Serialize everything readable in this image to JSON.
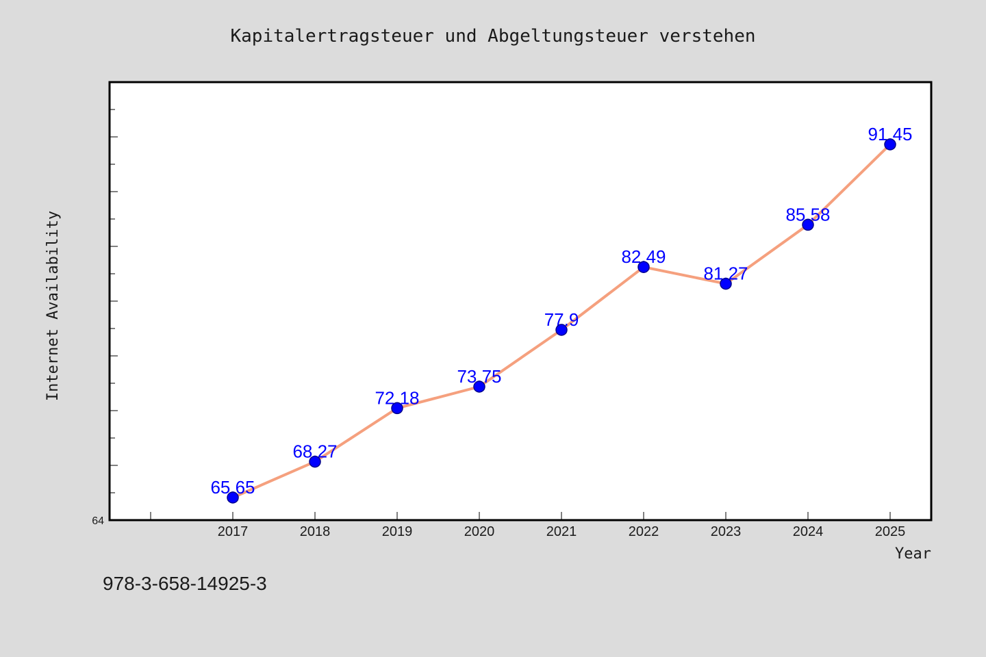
{
  "page": {
    "background": "#dcdcdc",
    "plot_background": "#ffffff",
    "axis_color": "#000000"
  },
  "isbn": "978-3-658-14925-3",
  "chart_data": {
    "type": "line",
    "title": "Kapitalertragsteuer und Abgeltungsteuer verstehen",
    "xlabel": "Year",
    "ylabel": "Internet Availability",
    "x": [
      2017,
      2018,
      2019,
      2020,
      2021,
      2022,
      2023,
      2024,
      2025
    ],
    "series": [
      {
        "values": [
          65.65,
          68.27,
          72.18,
          73.75,
          77.9,
          82.49,
          81.27,
          85.58,
          91.45
        ],
        "line_color": "#f5a07e",
        "marker_color": "#0000ff",
        "marker_edge_color": "#00008b",
        "label_color": "#0000ff"
      }
    ],
    "xlim": [
      2015.5,
      2025.5
    ],
    "ylim": [
      64,
      96
    ],
    "x_tick_step": 1,
    "y_tick_step": 2,
    "y_tick_labels": [
      "64"
    ],
    "data_labels": true,
    "grid": false,
    "legend": "none"
  }
}
